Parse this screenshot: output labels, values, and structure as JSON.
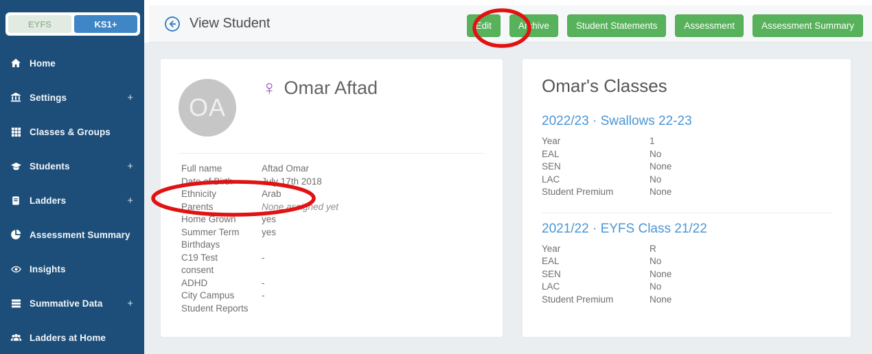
{
  "sidebar": {
    "toggle": {
      "eyfs": "EYFS",
      "ks1": "KS1+"
    },
    "expand_symbol": "+",
    "items": [
      {
        "label": "Home",
        "icon": "home",
        "expandable": false
      },
      {
        "label": "Settings",
        "icon": "bank",
        "expandable": true
      },
      {
        "label": "Classes & Groups",
        "icon": "grid",
        "expandable": false
      },
      {
        "label": "Students",
        "icon": "graduation-cap",
        "expandable": true
      },
      {
        "label": "Ladders",
        "icon": "book",
        "expandable": true
      },
      {
        "label": "Assessment Summary",
        "icon": "pie-chart",
        "expandable": false
      },
      {
        "label": "Insights",
        "icon": "eye",
        "expandable": false
      },
      {
        "label": "Summative Data",
        "icon": "server",
        "expandable": true
      },
      {
        "label": "Ladders at Home",
        "icon": "users",
        "expandable": false
      }
    ]
  },
  "toolbar": {
    "title": "View Student",
    "back_icon": "arrow-left-circle",
    "buttons": [
      "Edit",
      "Archive",
      "Student Statements",
      "Assessment",
      "Assessment Summary"
    ]
  },
  "student": {
    "initials": "OA",
    "gender_symbol": "♀",
    "name": "Omar Aftad",
    "details": [
      {
        "label": "Full name",
        "value": "Aftad Omar"
      },
      {
        "label": "Date of Birth",
        "value": "July 17th 2018"
      },
      {
        "label": "Ethnicity",
        "value": "Arab",
        "highlighted": true
      },
      {
        "label": "Parents",
        "value": "None assigned yet",
        "italic": true
      },
      {
        "label": "Home Grown",
        "value": "yes"
      },
      {
        "label": "Summer Term Birthdays",
        "value": "yes"
      },
      {
        "label": "C19 Test consent",
        "value": "-"
      },
      {
        "label": "ADHD",
        "value": "-"
      },
      {
        "label": "City Campus Student Reports",
        "value": "-"
      }
    ]
  },
  "classes": {
    "title": "Omar's Classes",
    "entries": [
      {
        "link": "2022/23 · Swallows 22-23",
        "fields": [
          [
            "Year",
            "1"
          ],
          [
            "EAL",
            "No"
          ],
          [
            "SEN",
            "None"
          ],
          [
            "LAC",
            "No"
          ],
          [
            "Student Premium",
            "None"
          ]
        ]
      },
      {
        "link": "2021/22 · EYFS Class 21/22",
        "fields": [
          [
            "Year",
            "R"
          ],
          [
            "EAL",
            "No"
          ],
          [
            "SEN",
            "None"
          ],
          [
            "LAC",
            "No"
          ],
          [
            "Student Premium",
            "None"
          ]
        ]
      }
    ]
  },
  "annotations": {
    "color": "#e01212",
    "circled_items": [
      "Edit button",
      "Ethnicity row"
    ]
  },
  "colors": {
    "sidebar_bg": "#1d4e79",
    "accent_green": "#57b25b",
    "active_toggle_blue": "#3e86c6",
    "link_blue": "#4a95d5",
    "gender_purple": "#9b51bd",
    "content_bg": "#eaeef0"
  }
}
